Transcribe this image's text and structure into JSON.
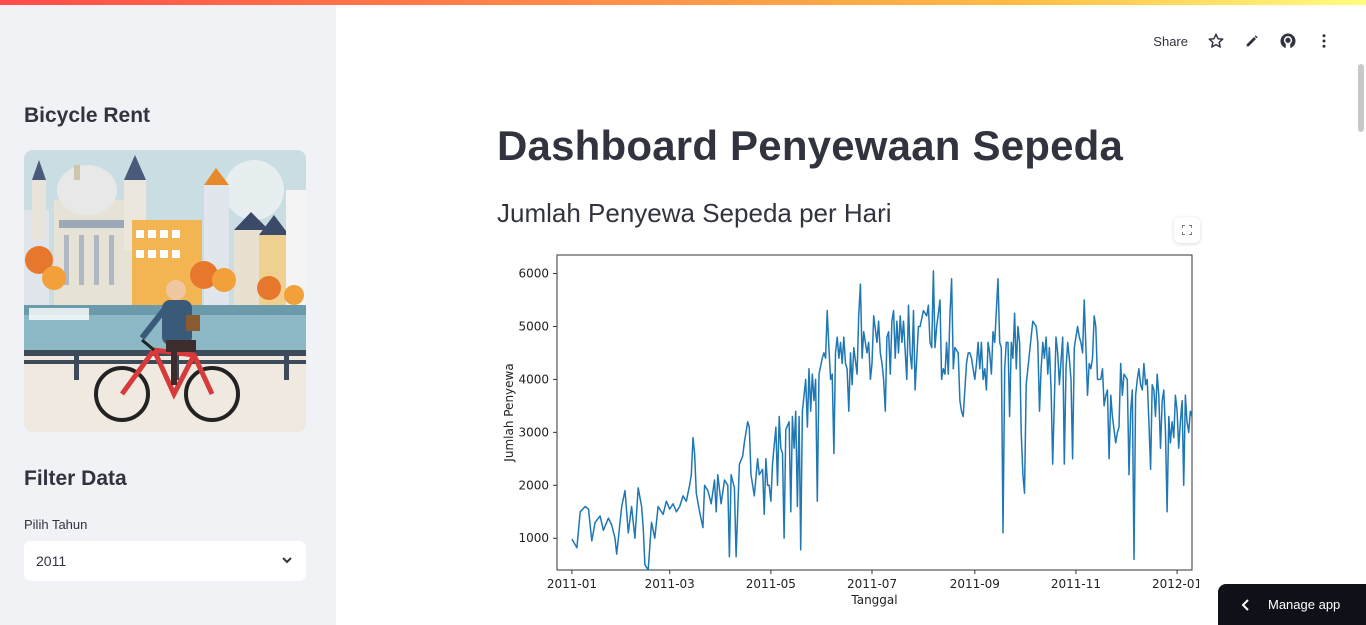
{
  "sidebar": {
    "title": "Bicycle Rent",
    "image_alt": "cyclist-illustration",
    "filter_title": "Filter Data",
    "select_label": "Pilih Tahun",
    "select_value": "2011"
  },
  "toolbar": {
    "share_label": "Share",
    "icons": [
      "star-icon",
      "edit-icon",
      "github-icon",
      "more-vertical-icon"
    ]
  },
  "main": {
    "title": "Dashboard Penyewaan Sepeda",
    "subtitle": "Jumlah Penyewa Sepeda per Hari"
  },
  "manage_app": {
    "label": "Manage app"
  },
  "colors": {
    "accent": "#ff4b4b",
    "line": "#1f77b4",
    "sidebar_bg": "#f0f2f6"
  },
  "chart_data": {
    "type": "line",
    "xlabel": "Tanggal",
    "ylabel": "Jumlah Penyewa",
    "x_ticks": [
      "2011-01",
      "2011-03",
      "2011-05",
      "2011-07",
      "2011-09",
      "2011-11",
      "2012-01"
    ],
    "y_ticks": [
      1000,
      2000,
      3000,
      4000,
      5000,
      6000
    ],
    "ylim": [
      400,
      6350
    ],
    "xlim_days": [
      -9,
      374
    ],
    "x_start_date": "2011-01-01",
    "series": [
      {
        "name": "",
        "day_values": [
          [
            0,
            985
          ],
          [
            3,
            820
          ],
          [
            5,
            1500
          ],
          [
            8,
            1600
          ],
          [
            10,
            1550
          ],
          [
            12,
            950
          ],
          [
            14,
            1300
          ],
          [
            17,
            1420
          ],
          [
            19,
            1150
          ],
          [
            22,
            1380
          ],
          [
            24,
            1250
          ],
          [
            26,
            1000
          ],
          [
            27,
            700
          ],
          [
            30,
            1600
          ],
          [
            32,
            1900
          ],
          [
            34,
            1100
          ],
          [
            36,
            1600
          ],
          [
            38,
            1000
          ],
          [
            40,
            1950
          ],
          [
            42,
            1600
          ],
          [
            43,
            1200
          ],
          [
            44,
            500
          ],
          [
            46,
            400
          ],
          [
            48,
            1300
          ],
          [
            50,
            1000
          ],
          [
            52,
            1600
          ],
          [
            55,
            1450
          ],
          [
            57,
            1700
          ],
          [
            59,
            1550
          ],
          [
            61,
            1650
          ],
          [
            63,
            1500
          ],
          [
            65,
            1600
          ],
          [
            67,
            1800
          ],
          [
            69,
            1700
          ],
          [
            71,
            2000
          ],
          [
            72,
            2200
          ],
          [
            73,
            2900
          ],
          [
            74,
            2600
          ],
          [
            75,
            1850
          ],
          [
            77,
            1500
          ],
          [
            79,
            1200
          ],
          [
            80,
            2000
          ],
          [
            82,
            1900
          ],
          [
            84,
            1650
          ],
          [
            86,
            2100
          ],
          [
            87,
            1500
          ],
          [
            88,
            2200
          ],
          [
            90,
            1650
          ],
          [
            92,
            2100
          ],
          [
            94,
            2000
          ],
          [
            95,
            650
          ],
          [
            96,
            2200
          ],
          [
            98,
            1950
          ],
          [
            99,
            650
          ],
          [
            101,
            2400
          ],
          [
            103,
            2550
          ],
          [
            104,
            2800
          ],
          [
            106,
            3200
          ],
          [
            107,
            3100
          ],
          [
            108,
            2200
          ],
          [
            110,
            1800
          ],
          [
            112,
            2500
          ],
          [
            113,
            2200
          ],
          [
            115,
            2300
          ],
          [
            116,
            1450
          ],
          [
            117,
            2500
          ],
          [
            118,
            2000
          ],
          [
            119,
            2000
          ],
          [
            120,
            1700
          ],
          [
            121,
            2400
          ],
          [
            123,
            3100
          ],
          [
            124,
            2000
          ],
          [
            125,
            3300
          ],
          [
            126,
            2700
          ],
          [
            127,
            2600
          ],
          [
            128,
            1000
          ],
          [
            129,
            3050
          ],
          [
            131,
            3200
          ],
          [
            132,
            1500
          ],
          [
            133,
            3300
          ],
          [
            134,
            2700
          ],
          [
            135,
            3400
          ],
          [
            136,
            1600
          ],
          [
            137,
            3300
          ],
          [
            138,
            780
          ],
          [
            139,
            3400
          ],
          [
            141,
            4000
          ],
          [
            142,
            3100
          ],
          [
            143,
            4200
          ],
          [
            144,
            3400
          ],
          [
            145,
            4100
          ],
          [
            146,
            3600
          ],
          [
            147,
            4000
          ],
          [
            148,
            1700
          ],
          [
            149,
            4100
          ],
          [
            151,
            4400
          ],
          [
            152,
            4500
          ],
          [
            153,
            4400
          ],
          [
            154,
            5300
          ],
          [
            155,
            4600
          ],
          [
            156,
            4000
          ],
          [
            157,
            4100
          ],
          [
            158,
            2600
          ],
          [
            159,
            4500
          ],
          [
            160,
            4800
          ],
          [
            161,
            4400
          ],
          [
            162,
            4700
          ],
          [
            163,
            4300
          ],
          [
            164,
            4800
          ],
          [
            165,
            4300
          ],
          [
            166,
            4200
          ],
          [
            167,
            3400
          ],
          [
            168,
            4500
          ],
          [
            169,
            3900
          ],
          [
            170,
            4600
          ],
          [
            172,
            4100
          ],
          [
            173,
            5200
          ],
          [
            174,
            5800
          ],
          [
            175,
            4400
          ],
          [
            176,
            4900
          ],
          [
            178,
            4500
          ],
          [
            179,
            4700
          ],
          [
            180,
            4000
          ],
          [
            181,
            4300
          ],
          [
            182,
            5200
          ],
          [
            184,
            4700
          ],
          [
            185,
            5100
          ],
          [
            186,
            4500
          ],
          [
            187,
            4300
          ],
          [
            188,
            4000
          ],
          [
            189,
            3400
          ],
          [
            190,
            4800
          ],
          [
            191,
            4900
          ],
          [
            192,
            4100
          ],
          [
            193,
            5100
          ],
          [
            194,
            5300
          ],
          [
            195,
            4400
          ],
          [
            196,
            5100
          ],
          [
            197,
            4500
          ],
          [
            198,
            5200
          ],
          [
            199,
            4700
          ],
          [
            200,
            5100
          ],
          [
            202,
            4000
          ],
          [
            203,
            5400
          ],
          [
            204,
            4500
          ],
          [
            205,
            4200
          ],
          [
            206,
            5300
          ],
          [
            207,
            3800
          ],
          [
            209,
            5000
          ],
          [
            210,
            5000
          ],
          [
            212,
            5300
          ],
          [
            214,
            5200
          ],
          [
            215,
            5400
          ],
          [
            216,
            4700
          ],
          [
            217,
            4600
          ],
          [
            218,
            6050
          ],
          [
            219,
            4600
          ],
          [
            220,
            5000
          ],
          [
            222,
            5500
          ],
          [
            223,
            4000
          ],
          [
            224,
            4200
          ],
          [
            225,
            4100
          ],
          [
            226,
            4700
          ],
          [
            227,
            4100
          ],
          [
            228,
            5200
          ],
          [
            229,
            5900
          ],
          [
            230,
            4200
          ],
          [
            231,
            4600
          ],
          [
            233,
            4500
          ],
          [
            234,
            3600
          ],
          [
            235,
            3400
          ],
          [
            236,
            3300
          ],
          [
            238,
            4300
          ],
          [
            239,
            4500
          ],
          [
            240,
            4500
          ],
          [
            241,
            4400
          ],
          [
            242,
            4200
          ],
          [
            243,
            4000
          ],
          [
            244,
            4300
          ],
          [
            245,
            4700
          ],
          [
            246,
            4200
          ],
          [
            247,
            4700
          ],
          [
            248,
            4000
          ],
          [
            249,
            4200
          ],
          [
            250,
            3800
          ],
          [
            251,
            4700
          ],
          [
            252,
            4500
          ],
          [
            253,
            4100
          ],
          [
            254,
            4900
          ],
          [
            255,
            4700
          ],
          [
            257,
            5900
          ],
          [
            258,
            4700
          ],
          [
            259,
            4600
          ],
          [
            260,
            1100
          ],
          [
            261,
            4200
          ],
          [
            262,
            4700
          ],
          [
            263,
            4700
          ],
          [
            264,
            3300
          ],
          [
            265,
            4700
          ],
          [
            266,
            4400
          ],
          [
            267,
            5250
          ],
          [
            268,
            4200
          ],
          [
            269,
            5000
          ],
          [
            270,
            4700
          ],
          [
            271,
            3000
          ],
          [
            272,
            2200
          ],
          [
            273,
            1850
          ],
          [
            274,
            3900
          ],
          [
            276,
            4500
          ],
          [
            278,
            5100
          ],
          [
            280,
            5000
          ],
          [
            281,
            4700
          ],
          [
            282,
            3400
          ],
          [
            283,
            4200
          ],
          [
            284,
            4700
          ],
          [
            285,
            4400
          ],
          [
            286,
            4800
          ],
          [
            287,
            4100
          ],
          [
            288,
            4600
          ],
          [
            289,
            3800
          ],
          [
            290,
            2400
          ],
          [
            292,
            4800
          ],
          [
            293,
            4500
          ],
          [
            294,
            3900
          ],
          [
            296,
            4800
          ],
          [
            297,
            2400
          ],
          [
            298,
            4200
          ],
          [
            299,
            4700
          ],
          [
            300,
            4400
          ],
          [
            301,
            4000
          ],
          [
            302,
            2500
          ],
          [
            303,
            4600
          ],
          [
            304,
            4800
          ],
          [
            305,
            5000
          ],
          [
            306,
            4800
          ],
          [
            307,
            4700
          ],
          [
            308,
            4500
          ],
          [
            309,
            5500
          ],
          [
            310,
            4600
          ],
          [
            311,
            3700
          ],
          [
            312,
            4300
          ],
          [
            313,
            4200
          ],
          [
            314,
            4400
          ],
          [
            315,
            5200
          ],
          [
            316,
            5000
          ],
          [
            317,
            4000
          ],
          [
            319,
            4000
          ],
          [
            320,
            4200
          ],
          [
            321,
            3500
          ],
          [
            322,
            3700
          ],
          [
            323,
            3800
          ],
          [
            324,
            2500
          ],
          [
            325,
            3700
          ],
          [
            326,
            3300
          ],
          [
            328,
            2800
          ],
          [
            329,
            3000
          ],
          [
            330,
            3100
          ],
          [
            331,
            4300
          ],
          [
            332,
            3700
          ],
          [
            333,
            4100
          ],
          [
            335,
            4000
          ],
          [
            336,
            2200
          ],
          [
            337,
            3400
          ],
          [
            338,
            3800
          ],
          [
            339,
            600
          ],
          [
            340,
            3700
          ],
          [
            341,
            4000
          ],
          [
            342,
            4200
          ],
          [
            343,
            3900
          ],
          [
            344,
            3800
          ],
          [
            345,
            4300
          ],
          [
            346,
            3900
          ],
          [
            347,
            4000
          ],
          [
            348,
            3200
          ],
          [
            349,
            2300
          ],
          [
            350,
            3900
          ],
          [
            351,
            3800
          ],
          [
            352,
            3300
          ],
          [
            353,
            4100
          ],
          [
            354,
            3700
          ],
          [
            355,
            2700
          ],
          [
            356,
            3600
          ],
          [
            357,
            3800
          ],
          [
            358,
            3000
          ],
          [
            359,
            1500
          ],
          [
            360,
            3300
          ],
          [
            361,
            2800
          ],
          [
            362,
            3200
          ],
          [
            363,
            2900
          ],
          [
            364,
            3700
          ],
          [
            365,
            3400
          ],
          [
            366,
            2700
          ],
          [
            367,
            3200
          ],
          [
            368,
            3600
          ],
          [
            369,
            2000
          ],
          [
            370,
            3700
          ],
          [
            371,
            3200
          ],
          [
            372,
            3000
          ],
          [
            373,
            3400
          ],
          [
            374,
            3300
          ]
        ]
      }
    ]
  }
}
